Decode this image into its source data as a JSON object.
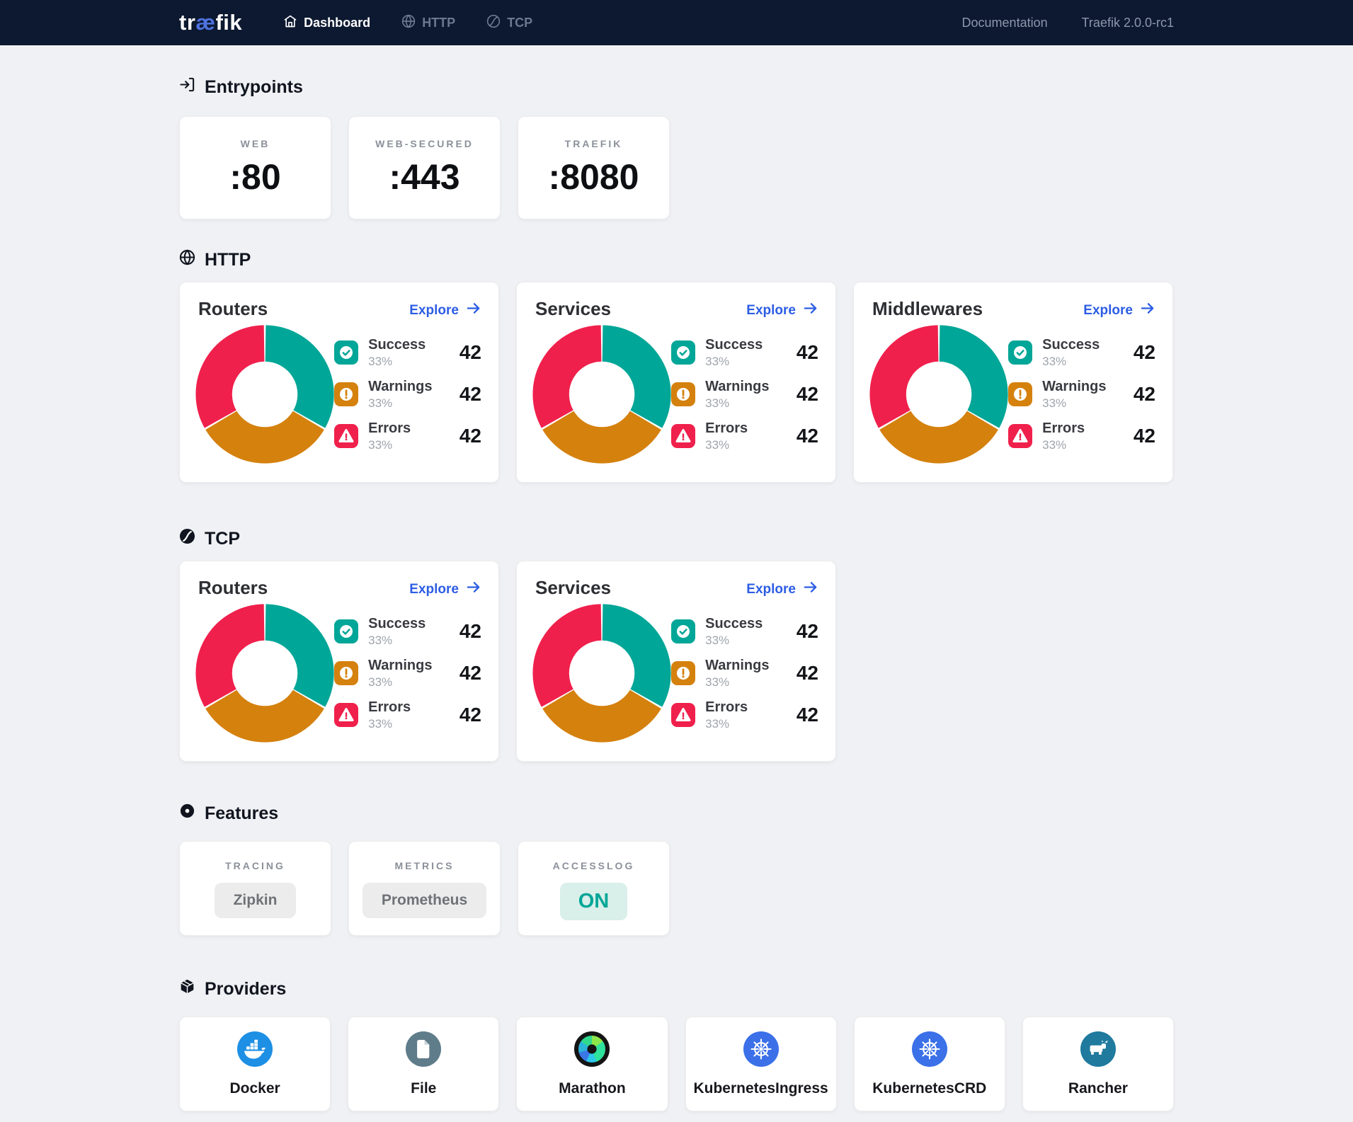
{
  "header": {
    "logo_pre": "tr",
    "logo_ae": "æ",
    "logo_post": "fik",
    "nav": [
      {
        "label": "Dashboard",
        "icon": "home-icon",
        "active": true
      },
      {
        "label": "HTTP",
        "icon": "globe-icon",
        "active": false
      },
      {
        "label": "TCP",
        "icon": "tcp-icon",
        "active": false
      }
    ],
    "doc_link": "Documentation",
    "version": "Traefik 2.0.0-rc1"
  },
  "entrypoints": {
    "title": "Entrypoints",
    "cards": [
      {
        "label": "WEB",
        "value": ":80"
      },
      {
        "label": "WEB-SECURED",
        "value": ":443"
      },
      {
        "label": "TRAEFIK",
        "value": ":8080"
      }
    ]
  },
  "http": {
    "title": "HTTP",
    "cards": [
      {
        "title": "Routers",
        "explore": "Explore"
      },
      {
        "title": "Services",
        "explore": "Explore"
      },
      {
        "title": "Middlewares",
        "explore": "Explore"
      }
    ]
  },
  "tcp": {
    "title": "TCP",
    "cards": [
      {
        "title": "Routers",
        "explore": "Explore"
      },
      {
        "title": "Services",
        "explore": "Explore"
      }
    ]
  },
  "stats": {
    "success": {
      "label": "Success",
      "pct": "33%",
      "value": "42"
    },
    "warnings": {
      "label": "Warnings",
      "pct": "33%",
      "value": "42"
    },
    "errors": {
      "label": "Errors",
      "pct": "33%",
      "value": "42"
    }
  },
  "chart_data": [
    {
      "type": "pie",
      "title": "HTTP Routers",
      "categories": [
        "Success",
        "Warnings",
        "Errors"
      ],
      "values": [
        33.33,
        33.33,
        33.33
      ],
      "counts": [
        42,
        42,
        42
      ],
      "colors": [
        "#00a697",
        "#d5810e",
        "#f0204c"
      ],
      "donut": true,
      "legend_position": "right"
    },
    {
      "type": "pie",
      "title": "HTTP Services",
      "categories": [
        "Success",
        "Warnings",
        "Errors"
      ],
      "values": [
        33.33,
        33.33,
        33.33
      ],
      "counts": [
        42,
        42,
        42
      ],
      "colors": [
        "#00a697",
        "#d5810e",
        "#f0204c"
      ],
      "donut": true,
      "legend_position": "right"
    },
    {
      "type": "pie",
      "title": "HTTP Middlewares",
      "categories": [
        "Success",
        "Warnings",
        "Errors"
      ],
      "values": [
        33.33,
        33.33,
        33.33
      ],
      "counts": [
        42,
        42,
        42
      ],
      "colors": [
        "#00a697",
        "#d5810e",
        "#f0204c"
      ],
      "donut": true,
      "legend_position": "right"
    },
    {
      "type": "pie",
      "title": "TCP Routers",
      "categories": [
        "Success",
        "Warnings",
        "Errors"
      ],
      "values": [
        33.33,
        33.33,
        33.33
      ],
      "counts": [
        42,
        42,
        42
      ],
      "colors": [
        "#00a697",
        "#d5810e",
        "#f0204c"
      ],
      "donut": true,
      "legend_position": "right"
    },
    {
      "type": "pie",
      "title": "TCP Services",
      "categories": [
        "Success",
        "Warnings",
        "Errors"
      ],
      "values": [
        33.33,
        33.33,
        33.33
      ],
      "counts": [
        42,
        42,
        42
      ],
      "colors": [
        "#00a697",
        "#d5810e",
        "#f0204c"
      ],
      "donut": true,
      "legend_position": "right"
    }
  ],
  "features": {
    "title": "Features",
    "cards": [
      {
        "label": "TRACING",
        "value": "Zipkin",
        "state": "default"
      },
      {
        "label": "METRICS",
        "value": "Prometheus",
        "state": "default"
      },
      {
        "label": "ACCESSLOG",
        "value": "ON",
        "state": "on"
      }
    ]
  },
  "providers": {
    "title": "Providers",
    "items": [
      {
        "name": "Docker"
      },
      {
        "name": "File"
      },
      {
        "name": "Marathon"
      },
      {
        "name": "KubernetesIngress"
      },
      {
        "name": "KubernetesCRD"
      },
      {
        "name": "Rancher"
      }
    ]
  },
  "colors": {
    "success": "#00a697",
    "warning": "#d5810e",
    "error": "#f0204c",
    "explore_link": "#2d5de4",
    "header_bg": "#0c1930",
    "logo_accent": "#4f72e0",
    "page_bg": "#f0f1f4"
  }
}
